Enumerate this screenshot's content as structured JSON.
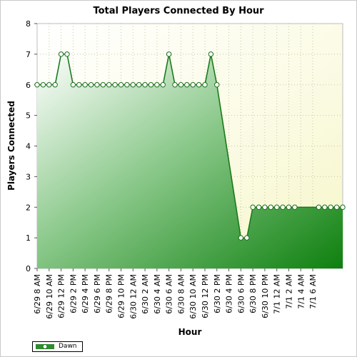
{
  "chart_data": {
    "type": "area",
    "title": "Total Players Connected By Hour",
    "xlabel": "Hour",
    "ylabel": "Players Connected",
    "ylim": [
      0,
      8
    ],
    "yticks": [
      0,
      1,
      2,
      3,
      4,
      5,
      6,
      7,
      8
    ],
    "grid": true,
    "legend_position": "bottom-left",
    "x_tick_labels": [
      "6/29 8 AM",
      "6/29 10 AM",
      "6/29 12 PM",
      "6/29 2 PM",
      "6/29 4 PM",
      "6/29 6 PM",
      "6/29 8 PM",
      "6/29 10 PM",
      "6/30 12 AM",
      "6/30 2 AM",
      "6/30 4 AM",
      "6/30 6 AM",
      "6/30 8 AM",
      "6/30 10 AM",
      "6/30 12 PM",
      "6/30 2 PM",
      "6/30 4 PM",
      "6/30 6 PM",
      "6/30 8 PM",
      "6/30 10 PM",
      "7/1 12 AM",
      "7/1 2 AM",
      "7/1 4 AM",
      "7/1 6 AM"
    ],
    "series": [
      {
        "name": "Dawn",
        "color": "#2e8b2e",
        "values": [
          6,
          6,
          6,
          6,
          7,
          7,
          6,
          6,
          6,
          6,
          6,
          6,
          6,
          6,
          6,
          6,
          6,
          6,
          6,
          6,
          6,
          6,
          7,
          6,
          6,
          6,
          6,
          6,
          6,
          7,
          6,
          null,
          null,
          null,
          1,
          1,
          2,
          2,
          2,
          2,
          2,
          2,
          2,
          2,
          null,
          null,
          null,
          2,
          2,
          2,
          2,
          2
        ]
      }
    ]
  }
}
